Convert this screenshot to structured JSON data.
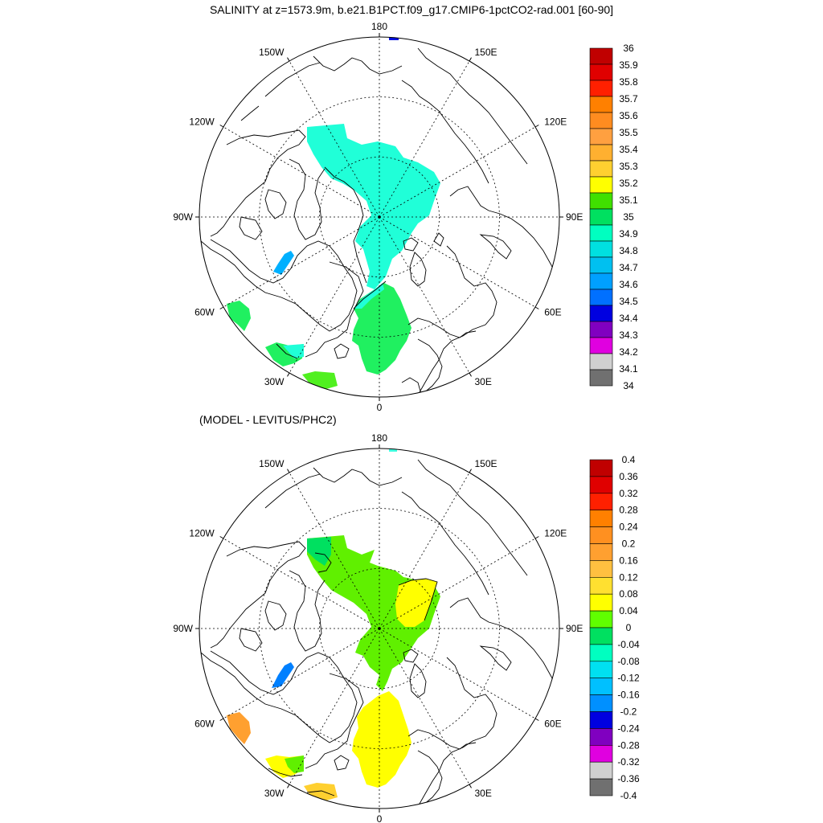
{
  "top_panel": {
    "title": "SALINITY at z=1573.9m, b.e21.B1PCT.f09_g17.CMIP6-1pctCO2-rad.001 [60-90]",
    "longitude_labels": [
      "180",
      "150E",
      "120E",
      "90E",
      "60E",
      "30E",
      "0",
      "30W",
      "60W",
      "90W",
      "120W",
      "150W"
    ],
    "colorbar": {
      "labels": [
        "36",
        "35.9",
        "35.8",
        "35.7",
        "35.6",
        "35.5",
        "35.4",
        "35.3",
        "35.2",
        "35.1",
        "35",
        "34.9",
        "34.8",
        "34.7",
        "34.6",
        "34.5",
        "34.4",
        "34.3",
        "34.2",
        "34.1",
        "34"
      ],
      "colors": [
        "#c00000",
        "#e00000",
        "#ff2000",
        "#ff8000",
        "#ff8c20",
        "#ffa040",
        "#ffb030",
        "#ffd030",
        "#ffff00",
        "#40e000",
        "#00e060",
        "#00ffc0",
        "#00e0e0",
        "#00c0f0",
        "#00a0ff",
        "#0070ff",
        "#0000e0",
        "#8000c0",
        "#e000e0",
        "#d0d0d0",
        "#707070"
      ]
    }
  },
  "bottom_panel": {
    "title": "(MODEL - LEVITUS/PHC2)",
    "longitude_labels": [
      "180",
      "150E",
      "120E",
      "90E",
      "60E",
      "30E",
      "0",
      "30W",
      "60W",
      "90W",
      "120W",
      "150W"
    ],
    "colorbar": {
      "labels": [
        "0.4",
        "0.36",
        "0.32",
        "0.28",
        "0.24",
        "0.2",
        "0.16",
        "0.12",
        "0.08",
        "0.04",
        "0",
        "-0.04",
        "-0.08",
        "-0.12",
        "-0.16",
        "-0.2",
        "-0.24",
        "-0.28",
        "-0.32",
        "-0.36",
        "-0.4"
      ],
      "colors": [
        "#c00000",
        "#e00000",
        "#ff2000",
        "#ff8000",
        "#ff9020",
        "#ffa030",
        "#ffc040",
        "#ffe030",
        "#ffff00",
        "#60ff00",
        "#00e060",
        "#00ffc0",
        "#00e0f0",
        "#00c0ff",
        "#0090ff",
        "#0000e0",
        "#8000c0",
        "#e000e0",
        "#d0d0d0",
        "#707070"
      ]
    }
  },
  "colors": {
    "top_arctic_fill": "#20ffd8",
    "top_atlantic_fill": "#20f060",
    "top_blue_patch": "#00b0ff",
    "bottom_arctic_fill": "#60f000",
    "bottom_atlantic_fill": "#ffff00",
    "bottom_blue_patch": "#0080ff"
  }
}
